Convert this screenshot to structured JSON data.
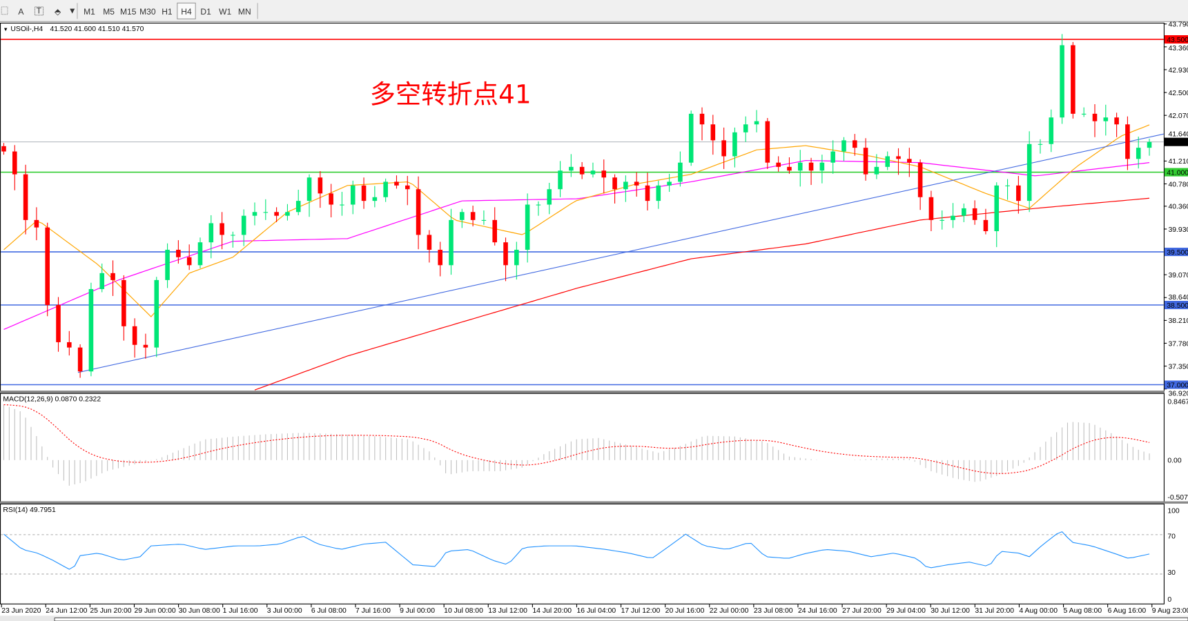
{
  "toolbar": {
    "tools": [
      {
        "label": "A",
        "icon": "text-icon"
      },
      {
        "label": "T",
        "icon": "text-label-icon"
      }
    ],
    "timeframes": [
      "M1",
      "M5",
      "M15",
      "M30",
      "H1",
      "H4",
      "D1",
      "W1",
      "MN"
    ],
    "active_timeframe": "H4"
  },
  "chart": {
    "symbol": "USOil-,H4",
    "ohlc": "41.520 41.600 41.510 41.570",
    "annotation": "多空转折点41",
    "price_ticks": [
      "43.790",
      "43.360",
      "42.930",
      "42.500",
      "42.070",
      "41.640",
      "41.210",
      "40.780",
      "40.360",
      "39.930",
      "39.070",
      "38.640",
      "38.210",
      "37.780",
      "37.350",
      "36.920"
    ],
    "levels": [
      {
        "price": 43.5,
        "label": "43.500",
        "color": "#ff0000"
      },
      {
        "price": 41.0,
        "label": "41.000",
        "color": "#32cd32"
      },
      {
        "price": 39.5,
        "label": "39.500",
        "color": "#4169e1"
      },
      {
        "price": 38.5,
        "label": "38.500",
        "color": "#4169e1"
      },
      {
        "price": 37.0,
        "label": "37.000",
        "color": "#4169e1"
      }
    ],
    "current_price": {
      "price": 41.57,
      "label": "41.570"
    },
    "colors": {
      "bull": "#00e676",
      "bear": "#ff0000",
      "annotation": "#ff0000",
      "trendline": "#4169e1"
    },
    "closes": [
      41.39,
      40.96,
      40.1,
      39.96,
      38.5,
      37.8,
      37.7,
      37.25,
      38.8,
      39.1,
      38.97,
      38.1,
      37.75,
      37.7,
      38.97,
      39.54,
      39.4,
      39.25,
      39.68,
      40.04,
      39.82,
      39.82,
      40.18,
      40.25,
      40.25,
      40.18,
      40.25,
      40.46,
      40.9,
      40.6,
      40.39,
      40.39,
      40.75,
      40.46,
      40.53,
      40.82,
      40.75,
      40.68,
      39.82,
      39.54,
      39.25,
      40.1,
      40.25,
      40.1,
      40.1,
      39.68,
      39.25,
      39.54,
      40.39,
      40.39,
      40.68,
      41.03,
      41.1,
      40.96,
      41.03,
      40.9,
      40.68,
      40.82,
      40.75,
      40.46,
      40.75,
      40.82,
      41.18,
      42.1,
      41.9,
      41.6,
      41.3,
      41.75,
      41.9,
      41.96,
      41.18,
      41.1,
      41.03,
      41.18,
      41.03,
      41.18,
      41.39,
      41.6,
      41.46,
      40.96,
      41.1,
      41.3,
      41.25,
      41.18,
      40.53,
      40.1,
      40.1,
      40.18,
      40.32,
      40.1,
      39.89,
      40.75,
      40.75,
      40.46,
      41.53,
      41.53,
      42.03,
      43.39,
      42.1,
      42.1,
      41.96,
      42.03,
      41.9,
      41.25,
      41.46,
      41.57
    ],
    "moving_averages": [
      {
        "color": "#ff0000",
        "points": [
          [
            23,
            36.9
          ],
          [
            31.5,
            37.54
          ],
          [
            42,
            38.18
          ],
          [
            52.6,
            38.82
          ],
          [
            63,
            39.37
          ],
          [
            73.5,
            39.65
          ],
          [
            84,
            40.1
          ],
          [
            94.6,
            40.32
          ],
          [
            105,
            40.51
          ]
        ]
      },
      {
        "color": "#ff00ff",
        "points": [
          [
            0,
            38.04
          ],
          [
            10.5,
            38.97
          ],
          [
            21,
            39.7
          ],
          [
            31.5,
            39.75
          ],
          [
            42,
            40.46
          ],
          [
            52.6,
            40.5
          ],
          [
            63,
            40.82
          ],
          [
            73.5,
            41.22
          ],
          [
            84,
            41.18
          ],
          [
            94.6,
            40.93
          ],
          [
            105,
            41.18
          ]
        ]
      },
      {
        "color": "#ffa500",
        "points": [
          [
            0,
            39.54
          ],
          [
            3.1,
            40.1
          ],
          [
            8.7,
            39.25
          ],
          [
            13.5,
            38.28
          ],
          [
            17,
            39.1
          ],
          [
            21,
            39.4
          ],
          [
            26,
            40.25
          ],
          [
            31.5,
            40.75
          ],
          [
            37.2,
            40.82
          ],
          [
            41.3,
            40.1
          ],
          [
            47.6,
            39.82
          ],
          [
            52.4,
            40.46
          ],
          [
            58,
            40.78
          ],
          [
            63,
            40.96
          ],
          [
            69,
            41.42
          ],
          [
            73.5,
            41.5
          ],
          [
            79.5,
            41.3
          ],
          [
            84,
            41.1
          ],
          [
            90,
            40.6
          ],
          [
            94,
            40.32
          ],
          [
            98.3,
            41.1
          ],
          [
            102.4,
            41.68
          ],
          [
            105,
            41.89
          ]
        ]
      }
    ],
    "trendline": [
      [
        6.8,
        37.23
      ],
      [
        105,
        41.66
      ]
    ]
  },
  "macd": {
    "title": "MACD(12,26,9) 0.0870 0.2322",
    "ticks": [
      "0.8467",
      "0.00",
      "-0.5072"
    ],
    "range": [
      -0.5072,
      0.8467
    ],
    "hist_color": "#c0c0c0",
    "signal_color": "#ff0000",
    "points": [
      [
        0,
        0.75
      ],
      [
        1.7,
        0.65
      ],
      [
        3.1,
        0.3
      ],
      [
        4.5,
        -0.1
      ],
      [
        5.9,
        -0.35
      ],
      [
        7.3,
        -0.3
      ],
      [
        9.4,
        -0.15
      ],
      [
        12.2,
        -0.05
      ],
      [
        14.2,
        0.02
      ],
      [
        16.3,
        0.15
      ],
      [
        18.4,
        0.28
      ],
      [
        21.2,
        0.32
      ],
      [
        24,
        0.35
      ],
      [
        27.4,
        0.37
      ],
      [
        30.9,
        0.35
      ],
      [
        34.4,
        0.32
      ],
      [
        37.2,
        0.28
      ],
      [
        39.2,
        0.1
      ],
      [
        40.6,
        -0.2
      ],
      [
        42.7,
        -0.15
      ],
      [
        45.5,
        -0.15
      ],
      [
        47.6,
        -0.1
      ],
      [
        49.7,
        0.1
      ],
      [
        52.4,
        0.28
      ],
      [
        54.5,
        0.3
      ],
      [
        57.3,
        0.2
      ],
      [
        60,
        0.1
      ],
      [
        62.2,
        0.2
      ],
      [
        64.2,
        0.33
      ],
      [
        67,
        0.32
      ],
      [
        69.8,
        0.25
      ],
      [
        71.9,
        0.05
      ],
      [
        74.7,
        0
      ],
      [
        77.4,
        0
      ],
      [
        80.2,
        0.02
      ],
      [
        83,
        0.02
      ],
      [
        85,
        -0.15
      ],
      [
        87.2,
        -0.25
      ],
      [
        89.2,
        -0.3
      ],
      [
        91.3,
        -0.2
      ],
      [
        93.4,
        -0.05
      ],
      [
        95.5,
        0.25
      ],
      [
        97.6,
        0.52
      ],
      [
        99.7,
        0.5
      ],
      [
        101.7,
        0.35
      ],
      [
        103.8,
        0.15
      ],
      [
        105,
        0.09
      ]
    ]
  },
  "rsi": {
    "title": "RSI(14) 49.7951",
    "ticks": [
      "100",
      "70",
      "30",
      "0"
    ],
    "color": "#1e90ff",
    "points": [
      [
        0,
        72
      ],
      [
        1.7,
        55
      ],
      [
        3.1,
        51
      ],
      [
        4.5,
        43
      ],
      [
        6.3,
        31
      ],
      [
        6.9,
        48
      ],
      [
        8.7,
        51
      ],
      [
        10.8,
        43
      ],
      [
        12.5,
        47
      ],
      [
        13.5,
        59
      ],
      [
        16.3,
        61
      ],
      [
        18.4,
        55
      ],
      [
        21.2,
        59
      ],
      [
        23.3,
        59
      ],
      [
        25.3,
        61
      ],
      [
        27.4,
        70
      ],
      [
        28.8,
        61
      ],
      [
        30.9,
        55
      ],
      [
        33,
        61
      ],
      [
        35,
        63
      ],
      [
        37.5,
        38
      ],
      [
        39.6,
        36
      ],
      [
        40.6,
        53
      ],
      [
        42.7,
        55
      ],
      [
        44.8,
        43
      ],
      [
        46.2,
        38
      ],
      [
        47.6,
        57
      ],
      [
        49.7,
        59
      ],
      [
        52.4,
        59
      ],
      [
        55.2,
        55
      ],
      [
        57.3,
        51
      ],
      [
        59.4,
        45
      ],
      [
        60.8,
        57
      ],
      [
        62.5,
        72
      ],
      [
        64.2,
        59
      ],
      [
        66.3,
        55
      ],
      [
        68.4,
        63
      ],
      [
        69.8,
        47
      ],
      [
        71.9,
        45
      ],
      [
        73.3,
        50
      ],
      [
        75.3,
        55
      ],
      [
        77.4,
        53
      ],
      [
        79.5,
        47
      ],
      [
        81.6,
        51
      ],
      [
        83.7,
        45
      ],
      [
        84.7,
        34
      ],
      [
        86.5,
        38
      ],
      [
        88.5,
        41
      ],
      [
        90.3,
        36
      ],
      [
        91.3,
        53
      ],
      [
        93,
        51
      ],
      [
        94,
        47
      ],
      [
        95.1,
        59
      ],
      [
        96.9,
        76
      ],
      [
        97.9,
        63
      ],
      [
        99.7,
        59
      ],
      [
        101.7,
        51
      ],
      [
        103.1,
        45
      ],
      [
        105,
        50
      ]
    ]
  },
  "time_labels": [
    "23 Jun 2020",
    "24 Jun 12:00",
    "25 Jun 20:00",
    "29 Jun 00:00",
    "30 Jun 08:00",
    "1 Jul 16:00",
    "3 Jul 00:00",
    "6 Jul 08:00",
    "7 Jul 16:00",
    "9 Jul 00:00",
    "10 Jul 08:00",
    "13 Jul 12:00",
    "14 Jul 20:00",
    "16 Jul 04:00",
    "17 Jul 12:00",
    "20 Jul 16:00",
    "22 Jul 00:00",
    "23 Jul 08:00",
    "24 Jul 16:00",
    "27 Jul 20:00",
    "29 Jul 04:00",
    "30 Jul 12:00",
    "31 Jul 20:00",
    "4 Aug 00:00",
    "5 Aug 08:00",
    "6 Aug 16:00",
    "9 Aug 23:00"
  ]
}
